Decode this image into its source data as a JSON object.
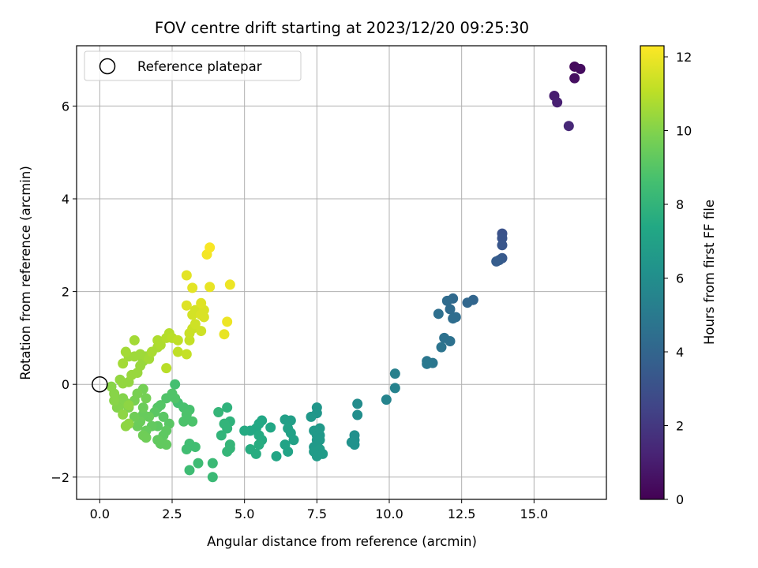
{
  "chart_data": {
    "type": "scatter",
    "title": "FOV centre drift starting at 2023/12/20 09:25:30",
    "xlabel": "Angular distance from reference (arcmin)",
    "ylabel": "Rotation from reference (arcmin)",
    "colorbar_label": "Hours from first FF file",
    "colormap": "viridis",
    "grid": true,
    "legend_position": "upper-left",
    "xlim": [
      -0.8,
      17.5
    ],
    "ylim": [
      -2.48,
      7.3
    ],
    "clim": [
      0,
      12.3
    ],
    "xticks": [
      0.0,
      2.5,
      5.0,
      7.5,
      10.0,
      12.5,
      15.0
    ],
    "xtick_labels": [
      "0.0",
      "2.5",
      "5.0",
      "7.5",
      "10.0",
      "12.5",
      "15.0"
    ],
    "yticks": [
      -2,
      0,
      2,
      4,
      6
    ],
    "ytick_labels": [
      "−2",
      "0",
      "2",
      "4",
      "6"
    ],
    "cticks": [
      0,
      2,
      4,
      6,
      8,
      10,
      12
    ],
    "ctick_labels": [
      "0",
      "2",
      "4",
      "6",
      "8",
      "10",
      "12"
    ],
    "reference": {
      "name": "Reference platepar",
      "x": 0.0,
      "y": 0.0
    },
    "points": [
      {
        "x": 16.4,
        "y": 6.85,
        "c": 0.3
      },
      {
        "x": 16.6,
        "y": 6.8,
        "c": 0.4
      },
      {
        "x": 16.4,
        "y": 6.6,
        "c": 0.5
      },
      {
        "x": 15.7,
        "y": 6.22,
        "c": 1.0
      },
      {
        "x": 15.8,
        "y": 6.08,
        "c": 1.1
      },
      {
        "x": 16.2,
        "y": 5.57,
        "c": 1.4
      },
      {
        "x": 13.9,
        "y": 3.25,
        "c": 3.1
      },
      {
        "x": 13.9,
        "y": 3.15,
        "c": 3.2
      },
      {
        "x": 13.9,
        "y": 3.0,
        "c": 3.3
      },
      {
        "x": 13.9,
        "y": 2.72,
        "c": 3.4
      },
      {
        "x": 13.8,
        "y": 2.68,
        "c": 3.5
      },
      {
        "x": 13.7,
        "y": 2.65,
        "c": 3.6
      },
      {
        "x": 12.9,
        "y": 1.82,
        "c": 4.0
      },
      {
        "x": 12.7,
        "y": 1.76,
        "c": 4.1
      },
      {
        "x": 12.2,
        "y": 1.85,
        "c": 4.2
      },
      {
        "x": 12.0,
        "y": 1.8,
        "c": 4.3
      },
      {
        "x": 12.1,
        "y": 1.62,
        "c": 4.3
      },
      {
        "x": 12.3,
        "y": 1.45,
        "c": 4.4
      },
      {
        "x": 12.2,
        "y": 1.42,
        "c": 4.4
      },
      {
        "x": 11.7,
        "y": 1.52,
        "c": 4.5
      },
      {
        "x": 11.9,
        "y": 1.0,
        "c": 4.6
      },
      {
        "x": 12.1,
        "y": 0.93,
        "c": 4.6
      },
      {
        "x": 11.8,
        "y": 0.8,
        "c": 4.7
      },
      {
        "x": 11.3,
        "y": 0.5,
        "c": 4.8
      },
      {
        "x": 11.5,
        "y": 0.46,
        "c": 4.8
      },
      {
        "x": 11.3,
        "y": 0.44,
        "c": 4.9
      },
      {
        "x": 10.2,
        "y": 0.23,
        "c": 5.3
      },
      {
        "x": 10.2,
        "y": -0.08,
        "c": 5.4
      },
      {
        "x": 9.9,
        "y": -0.33,
        "c": 5.5
      },
      {
        "x": 8.9,
        "y": -0.42,
        "c": 5.9
      },
      {
        "x": 8.9,
        "y": -0.66,
        "c": 6.0
      },
      {
        "x": 8.8,
        "y": -1.1,
        "c": 6.1
      },
      {
        "x": 8.8,
        "y": -1.2,
        "c": 6.1
      },
      {
        "x": 8.7,
        "y": -1.25,
        "c": 6.2
      },
      {
        "x": 8.8,
        "y": -1.3,
        "c": 6.2
      },
      {
        "x": 7.5,
        "y": -0.5,
        "c": 6.4
      },
      {
        "x": 7.5,
        "y": -0.62,
        "c": 6.4
      },
      {
        "x": 7.3,
        "y": -0.7,
        "c": 6.5
      },
      {
        "x": 7.5,
        "y": -1.1,
        "c": 6.5
      },
      {
        "x": 7.6,
        "y": -1.1,
        "c": 6.5
      },
      {
        "x": 7.5,
        "y": -1.2,
        "c": 6.6
      },
      {
        "x": 7.6,
        "y": -1.2,
        "c": 6.6
      },
      {
        "x": 7.4,
        "y": -1.35,
        "c": 6.6
      },
      {
        "x": 7.5,
        "y": -1.3,
        "c": 6.6
      },
      {
        "x": 7.6,
        "y": -1.4,
        "c": 6.7
      },
      {
        "x": 7.4,
        "y": -1.45,
        "c": 6.7
      },
      {
        "x": 7.5,
        "y": -1.55,
        "c": 6.7
      },
      {
        "x": 7.7,
        "y": -1.5,
        "c": 6.7
      },
      {
        "x": 7.4,
        "y": -1.0,
        "c": 6.6
      },
      {
        "x": 7.6,
        "y": -0.95,
        "c": 6.6
      },
      {
        "x": 6.6,
        "y": -0.78,
        "c": 6.9
      },
      {
        "x": 6.4,
        "y": -0.76,
        "c": 6.9
      },
      {
        "x": 6.5,
        "y": -0.95,
        "c": 7.0
      },
      {
        "x": 6.6,
        "y": -1.05,
        "c": 7.0
      },
      {
        "x": 6.7,
        "y": -1.2,
        "c": 7.0
      },
      {
        "x": 6.4,
        "y": -1.3,
        "c": 7.1
      },
      {
        "x": 6.5,
        "y": -1.45,
        "c": 7.1
      },
      {
        "x": 6.1,
        "y": -1.55,
        "c": 7.2
      },
      {
        "x": 5.9,
        "y": -0.93,
        "c": 7.3
      },
      {
        "x": 5.6,
        "y": -0.78,
        "c": 7.3
      },
      {
        "x": 5.5,
        "y": -0.85,
        "c": 7.4
      },
      {
        "x": 5.4,
        "y": -0.95,
        "c": 7.4
      },
      {
        "x": 5.2,
        "y": -1.0,
        "c": 7.4
      },
      {
        "x": 5.0,
        "y": -1.0,
        "c": 7.5
      },
      {
        "x": 5.5,
        "y": -1.1,
        "c": 7.5
      },
      {
        "x": 5.6,
        "y": -1.2,
        "c": 7.5
      },
      {
        "x": 5.5,
        "y": -1.3,
        "c": 7.6
      },
      {
        "x": 5.2,
        "y": -1.4,
        "c": 7.6
      },
      {
        "x": 5.4,
        "y": -1.5,
        "c": 7.6
      },
      {
        "x": 4.4,
        "y": -0.5,
        "c": 7.9
      },
      {
        "x": 4.5,
        "y": -0.8,
        "c": 7.9
      },
      {
        "x": 4.3,
        "y": -0.85,
        "c": 8.0
      },
      {
        "x": 4.4,
        "y": -0.95,
        "c": 8.0
      },
      {
        "x": 4.2,
        "y": -1.1,
        "c": 8.0
      },
      {
        "x": 4.5,
        "y": -1.3,
        "c": 8.1
      },
      {
        "x": 4.4,
        "y": -1.45,
        "c": 8.1
      },
      {
        "x": 4.5,
        "y": -1.38,
        "c": 8.1
      },
      {
        "x": 4.1,
        "y": -0.6,
        "c": 8.1
      },
      {
        "x": 3.9,
        "y": -1.7,
        "c": 8.3
      },
      {
        "x": 3.9,
        "y": -2.0,
        "c": 8.3
      },
      {
        "x": 3.1,
        "y": -1.85,
        "c": 8.4
      },
      {
        "x": 3.4,
        "y": -1.7,
        "c": 8.4
      },
      {
        "x": 3.3,
        "y": -1.35,
        "c": 8.5
      },
      {
        "x": 3.1,
        "y": -1.28,
        "c": 8.5
      },
      {
        "x": 3.0,
        "y": -1.4,
        "c": 8.5
      },
      {
        "x": 2.6,
        "y": 0.0,
        "c": 8.6
      },
      {
        "x": 2.7,
        "y": -0.4,
        "c": 8.6
      },
      {
        "x": 2.9,
        "y": -0.5,
        "c": 8.7
      },
      {
        "x": 3.1,
        "y": -0.55,
        "c": 8.7
      },
      {
        "x": 3.2,
        "y": -0.8,
        "c": 8.8
      },
      {
        "x": 2.9,
        "y": -0.8,
        "c": 8.8
      },
      {
        "x": 3.0,
        "y": -0.65,
        "c": 8.8
      },
      {
        "x": 2.6,
        "y": -0.3,
        "c": 8.9
      },
      {
        "x": 2.3,
        "y": -0.3,
        "c": 8.9
      },
      {
        "x": 2.5,
        "y": -0.2,
        "c": 8.9
      },
      {
        "x": 2.1,
        "y": -0.45,
        "c": 9.0
      },
      {
        "x": 2.0,
        "y": -0.5,
        "c": 9.0
      },
      {
        "x": 1.9,
        "y": -0.6,
        "c": 9.1
      },
      {
        "x": 2.2,
        "y": -0.7,
        "c": 9.1
      },
      {
        "x": 2.4,
        "y": -0.85,
        "c": 9.1
      },
      {
        "x": 2.3,
        "y": -1.0,
        "c": 9.2
      },
      {
        "x": 2.0,
        "y": -0.9,
        "c": 9.2
      },
      {
        "x": 2.2,
        "y": -1.1,
        "c": 9.2
      },
      {
        "x": 2.0,
        "y": -1.2,
        "c": 9.3
      },
      {
        "x": 2.3,
        "y": -1.3,
        "c": 9.3
      },
      {
        "x": 2.1,
        "y": -1.28,
        "c": 9.3
      },
      {
        "x": 1.8,
        "y": -0.9,
        "c": 9.3
      },
      {
        "x": 1.7,
        "y": -0.7,
        "c": 9.4
      },
      {
        "x": 1.6,
        "y": -1.0,
        "c": 9.4
      },
      {
        "x": 1.5,
        "y": -0.65,
        "c": 9.4
      },
      {
        "x": 1.5,
        "y": -0.5,
        "c": 9.5
      },
      {
        "x": 1.4,
        "y": -0.8,
        "c": 9.5
      },
      {
        "x": 1.3,
        "y": -0.9,
        "c": 9.5
      },
      {
        "x": 1.5,
        "y": -1.1,
        "c": 9.6
      },
      {
        "x": 1.6,
        "y": -1.15,
        "c": 9.6
      },
      {
        "x": 1.2,
        "y": -0.7,
        "c": 9.6
      },
      {
        "x": 1.6,
        "y": -0.3,
        "c": 9.7
      },
      {
        "x": 1.5,
        "y": -0.1,
        "c": 9.7
      },
      {
        "x": 1.3,
        "y": -0.2,
        "c": 9.8
      },
      {
        "x": 1.2,
        "y": -0.35,
        "c": 9.8
      },
      {
        "x": 1.0,
        "y": -0.5,
        "c": 9.9
      },
      {
        "x": 0.9,
        "y": -0.4,
        "c": 9.9
      },
      {
        "x": 0.8,
        "y": -0.3,
        "c": 10.0
      },
      {
        "x": 0.7,
        "y": -0.45,
        "c": 10.0
      },
      {
        "x": 0.6,
        "y": -0.5,
        "c": 10.0
      },
      {
        "x": 0.5,
        "y": -0.35,
        "c": 10.1
      },
      {
        "x": 0.5,
        "y": -0.2,
        "c": 10.1
      },
      {
        "x": 0.4,
        "y": -0.05,
        "c": 10.1
      },
      {
        "x": 0.8,
        "y": -0.65,
        "c": 10.2
      },
      {
        "x": 0.9,
        "y": -0.9,
        "c": 10.2
      },
      {
        "x": 1.0,
        "y": -0.85,
        "c": 10.2
      },
      {
        "x": 1.0,
        "y": -0.45,
        "c": 10.2
      },
      {
        "x": 0.7,
        "y": 0.1,
        "c": 10.3
      },
      {
        "x": 0.8,
        "y": 0.02,
        "c": 10.3
      },
      {
        "x": 1.0,
        "y": 0.05,
        "c": 10.3
      },
      {
        "x": 1.1,
        "y": 0.2,
        "c": 10.4
      },
      {
        "x": 1.3,
        "y": 0.25,
        "c": 10.4
      },
      {
        "x": 1.4,
        "y": 0.4,
        "c": 10.4
      },
      {
        "x": 1.5,
        "y": 0.5,
        "c": 10.4
      },
      {
        "x": 1.6,
        "y": 0.6,
        "c": 10.5
      },
      {
        "x": 1.4,
        "y": 0.65,
        "c": 10.5
      },
      {
        "x": 1.2,
        "y": 0.6,
        "c": 10.5
      },
      {
        "x": 1.0,
        "y": 0.6,
        "c": 10.5
      },
      {
        "x": 0.9,
        "y": 0.7,
        "c": 10.6
      },
      {
        "x": 0.8,
        "y": 0.45,
        "c": 10.6
      },
      {
        "x": 1.2,
        "y": 0.95,
        "c": 10.6
      },
      {
        "x": 1.7,
        "y": 0.55,
        "c": 10.6
      },
      {
        "x": 1.8,
        "y": 0.7,
        "c": 10.7
      },
      {
        "x": 2.0,
        "y": 0.8,
        "c": 10.7
      },
      {
        "x": 2.0,
        "y": 0.95,
        "c": 10.8
      },
      {
        "x": 2.1,
        "y": 0.85,
        "c": 10.8
      },
      {
        "x": 2.3,
        "y": 1.0,
        "c": 10.9
      },
      {
        "x": 2.4,
        "y": 1.1,
        "c": 10.9
      },
      {
        "x": 2.5,
        "y": 1.0,
        "c": 11.0
      },
      {
        "x": 2.3,
        "y": 0.35,
        "c": 11.0
      },
      {
        "x": 2.7,
        "y": 0.95,
        "c": 11.1
      },
      {
        "x": 2.7,
        "y": 0.7,
        "c": 11.1
      },
      {
        "x": 3.0,
        "y": 0.65,
        "c": 11.2
      },
      {
        "x": 3.1,
        "y": 0.95,
        "c": 11.2
      },
      {
        "x": 3.1,
        "y": 1.1,
        "c": 11.3
      },
      {
        "x": 3.2,
        "y": 1.2,
        "c": 11.3
      },
      {
        "x": 3.3,
        "y": 1.3,
        "c": 11.4
      },
      {
        "x": 3.5,
        "y": 1.15,
        "c": 11.4
      },
      {
        "x": 3.2,
        "y": 1.5,
        "c": 11.5
      },
      {
        "x": 3.3,
        "y": 1.6,
        "c": 11.5
      },
      {
        "x": 3.5,
        "y": 1.5,
        "c": 11.6
      },
      {
        "x": 3.6,
        "y": 1.45,
        "c": 11.6
      },
      {
        "x": 3.6,
        "y": 1.6,
        "c": 11.6
      },
      {
        "x": 3.5,
        "y": 1.75,
        "c": 11.7
      },
      {
        "x": 3.0,
        "y": 1.7,
        "c": 11.7
      },
      {
        "x": 3.2,
        "y": 2.08,
        "c": 11.8
      },
      {
        "x": 3.0,
        "y": 2.35,
        "c": 11.8
      },
      {
        "x": 3.8,
        "y": 2.1,
        "c": 11.9
      },
      {
        "x": 4.3,
        "y": 1.08,
        "c": 11.9
      },
      {
        "x": 4.4,
        "y": 1.35,
        "c": 12.0
      },
      {
        "x": 4.5,
        "y": 2.15,
        "c": 12.0
      },
      {
        "x": 3.7,
        "y": 2.8,
        "c": 12.1
      },
      {
        "x": 3.8,
        "y": 2.95,
        "c": 12.2
      }
    ]
  }
}
